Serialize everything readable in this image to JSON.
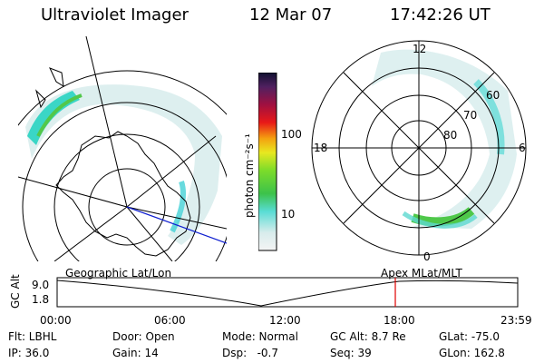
{
  "header": {
    "instrument": "Ultraviolet Imager",
    "date": "12 Mar 07",
    "time": "17:42:26 UT"
  },
  "colorbar": {
    "unit_label": "photon cm⁻²s⁻¹",
    "ticks": [
      "100",
      "10"
    ]
  },
  "right_map": {
    "mlt_labels": {
      "top": "12",
      "left": "18",
      "right": "6",
      "bottom": "0"
    },
    "lat_labels": [
      "60",
      "70",
      "80"
    ]
  },
  "altitude_plot": {
    "left_title": "Geographic Lat/Lon",
    "right_title": "Apex MLat/MLT",
    "ylabel": "GC Alt",
    "y_ticks": [
      "9.0",
      "1.8"
    ],
    "x_ticks": [
      "00:00",
      "06:00",
      "12:00",
      "18:00",
      "23:59"
    ],
    "marker_color": "#e00000"
  },
  "status": {
    "flt": "Flt: LBHL",
    "ip": "IP: 36.0",
    "door": "Door: Open",
    "gain": "Gain: 14",
    "mode": "Mode: Normal",
    "dsp": "Dsp:   -0.7",
    "gc_alt": "GC Alt: 8.7 Re",
    "seq": "Seq: 39",
    "glat": "GLat: -75.0",
    "glon": "GLon: 162.8"
  }
}
